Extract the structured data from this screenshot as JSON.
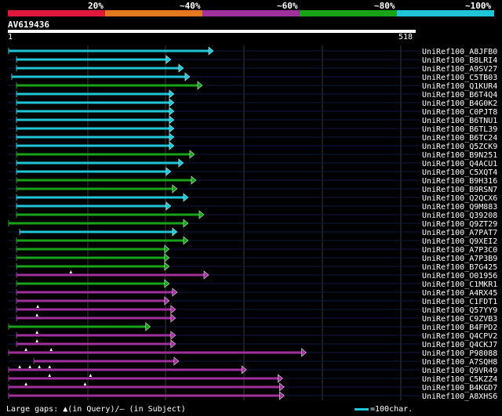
{
  "legend": {
    "labels": [
      "20%",
      "~40%",
      "~60%",
      "~80%",
      "~100%"
    ],
    "colors": [
      "#e0183a",
      "#e2781f",
      "#a0309e",
      "#18a31a",
      "#1fc4d6"
    ]
  },
  "query": {
    "name": "AV619436",
    "start_label": "1",
    "end_label": "518",
    "length": 518
  },
  "footer": {
    "gaps_text": "Large gaps: ▲(in Query)/– (in Subject)",
    "scale_text": "=100char."
  },
  "hits": [
    {
      "name": "UniRef100_A8JFB0",
      "start": 1,
      "end": 260,
      "color": "cyan",
      "qgaps": []
    },
    {
      "name": "UniRef100_B8LRI4",
      "start": 11,
      "end": 206,
      "color": "cyan",
      "qgaps": []
    },
    {
      "name": "UniRef100_A9SV27",
      "start": 11,
      "end": 222,
      "color": "cyan",
      "qgaps": []
    },
    {
      "name": "UniRef100_C5TB03",
      "start": 5,
      "end": 230,
      "color": "cyan",
      "qgaps": []
    },
    {
      "name": "UniRef100_Q1KUR4",
      "start": 11,
      "end": 246,
      "color": "green",
      "qgaps": []
    },
    {
      "name": "UniRef100_B6T4Q4",
      "start": 11,
      "end": 210,
      "color": "cyan",
      "qgaps": []
    },
    {
      "name": "UniRef100_B4G0K2",
      "start": 11,
      "end": 210,
      "color": "cyan",
      "qgaps": []
    },
    {
      "name": "UniRef100_C0PJT8",
      "start": 11,
      "end": 210,
      "color": "cyan",
      "qgaps": []
    },
    {
      "name": "UniRef100_B6TNU1",
      "start": 11,
      "end": 210,
      "color": "cyan",
      "qgaps": []
    },
    {
      "name": "UniRef100_B6TL39",
      "start": 11,
      "end": 210,
      "color": "cyan",
      "qgaps": []
    },
    {
      "name": "UniRef100_B6TC24",
      "start": 11,
      "end": 210,
      "color": "cyan",
      "qgaps": []
    },
    {
      "name": "UniRef100_Q5ZCK9",
      "start": 11,
      "end": 210,
      "color": "cyan",
      "qgaps": []
    },
    {
      "name": "UniRef100_B9N251",
      "start": 11,
      "end": 236,
      "color": "green",
      "qgaps": []
    },
    {
      "name": "UniRef100_Q4ACU1",
      "start": 11,
      "end": 222,
      "color": "cyan",
      "qgaps": []
    },
    {
      "name": "UniRef100_C5XQT4",
      "start": 11,
      "end": 206,
      "color": "cyan",
      "qgaps": []
    },
    {
      "name": "UniRef100_B9H316",
      "start": 11,
      "end": 238,
      "color": "green",
      "qgaps": []
    },
    {
      "name": "UniRef100_B9RSN7",
      "start": 11,
      "end": 214,
      "color": "green",
      "qgaps": []
    },
    {
      "name": "UniRef100_Q2QCX6",
      "start": 11,
      "end": 228,
      "color": "cyan",
      "qgaps": []
    },
    {
      "name": "UniRef100_Q9M883",
      "start": 11,
      "end": 206,
      "color": "cyan",
      "qgaps": []
    },
    {
      "name": "UniRef100_Q39208",
      "start": 11,
      "end": 248,
      "color": "green",
      "qgaps": []
    },
    {
      "name": "UniRef100_Q9ZT29",
      "start": 1,
      "end": 228,
      "color": "green",
      "qgaps": []
    },
    {
      "name": "UniRef100_A7PAT7",
      "start": 15,
      "end": 214,
      "color": "cyan",
      "qgaps": []
    },
    {
      "name": "UniRef100_Q9XEI2",
      "start": 11,
      "end": 228,
      "color": "green",
      "qgaps": []
    },
    {
      "name": "UniRef100_A7P3C0",
      "start": 11,
      "end": 204,
      "color": "green",
      "qgaps": []
    },
    {
      "name": "UniRef100_A7P3B9",
      "start": 11,
      "end": 204,
      "color": "green",
      "qgaps": []
    },
    {
      "name": "UniRef100_B7G425",
      "start": 11,
      "end": 204,
      "color": "green",
      "qgaps": []
    },
    {
      "name": "UniRef100_O01956",
      "start": 11,
      "end": 254,
      "color": "magenta",
      "qgaps": [
        80
      ]
    },
    {
      "name": "UniRef100_C1MKR1",
      "start": 11,
      "end": 204,
      "color": "green",
      "qgaps": []
    },
    {
      "name": "UniRef100_A4RX45",
      "start": 11,
      "end": 214,
      "color": "magenta",
      "qgaps": []
    },
    {
      "name": "UniRef100_C1FDT1",
      "start": 11,
      "end": 204,
      "color": "magenta",
      "qgaps": []
    },
    {
      "name": "UniRef100_Q57YY9",
      "start": 11,
      "end": 212,
      "color": "magenta",
      "qgaps": [
        38
      ]
    },
    {
      "name": "UniRef100_C9ZVB3",
      "start": 11,
      "end": 212,
      "color": "magenta",
      "qgaps": [
        37
      ]
    },
    {
      "name": "UniRef100_B4FPD2",
      "start": 1,
      "end": 180,
      "color": "green",
      "qgaps": []
    },
    {
      "name": "UniRef100_Q4CPV2",
      "start": 11,
      "end": 212,
      "color": "magenta",
      "qgaps": [
        37
      ]
    },
    {
      "name": "UniRef100_Q4CKJ7",
      "start": 11,
      "end": 212,
      "color": "magenta",
      "qgaps": [
        37
      ]
    },
    {
      "name": "UniRef100_P98088",
      "start": 1,
      "end": 378,
      "color": "magenta",
      "qgaps": [
        23,
        55
      ]
    },
    {
      "name": "UniRef100_A7SQH8",
      "start": 33,
      "end": 216,
      "color": "magenta",
      "qgaps": []
    },
    {
      "name": "UniRef100_Q9VR49",
      "start": 1,
      "end": 302,
      "color": "magenta",
      "qgaps": [
        15,
        28,
        40,
        53
      ]
    },
    {
      "name": "UniRef100_C5KZZ4",
      "start": 1,
      "end": 348,
      "color": "magenta",
      "qgaps": [
        53,
        105
      ]
    },
    {
      "name": "UniRef100_B4KGD7",
      "start": 1,
      "end": 350,
      "color": "magenta",
      "qgaps": [
        23,
        98
      ]
    },
    {
      "name": "UniRef100_A8XHS6",
      "start": 1,
      "end": 350,
      "color": "magenta",
      "qgaps": []
    }
  ]
}
